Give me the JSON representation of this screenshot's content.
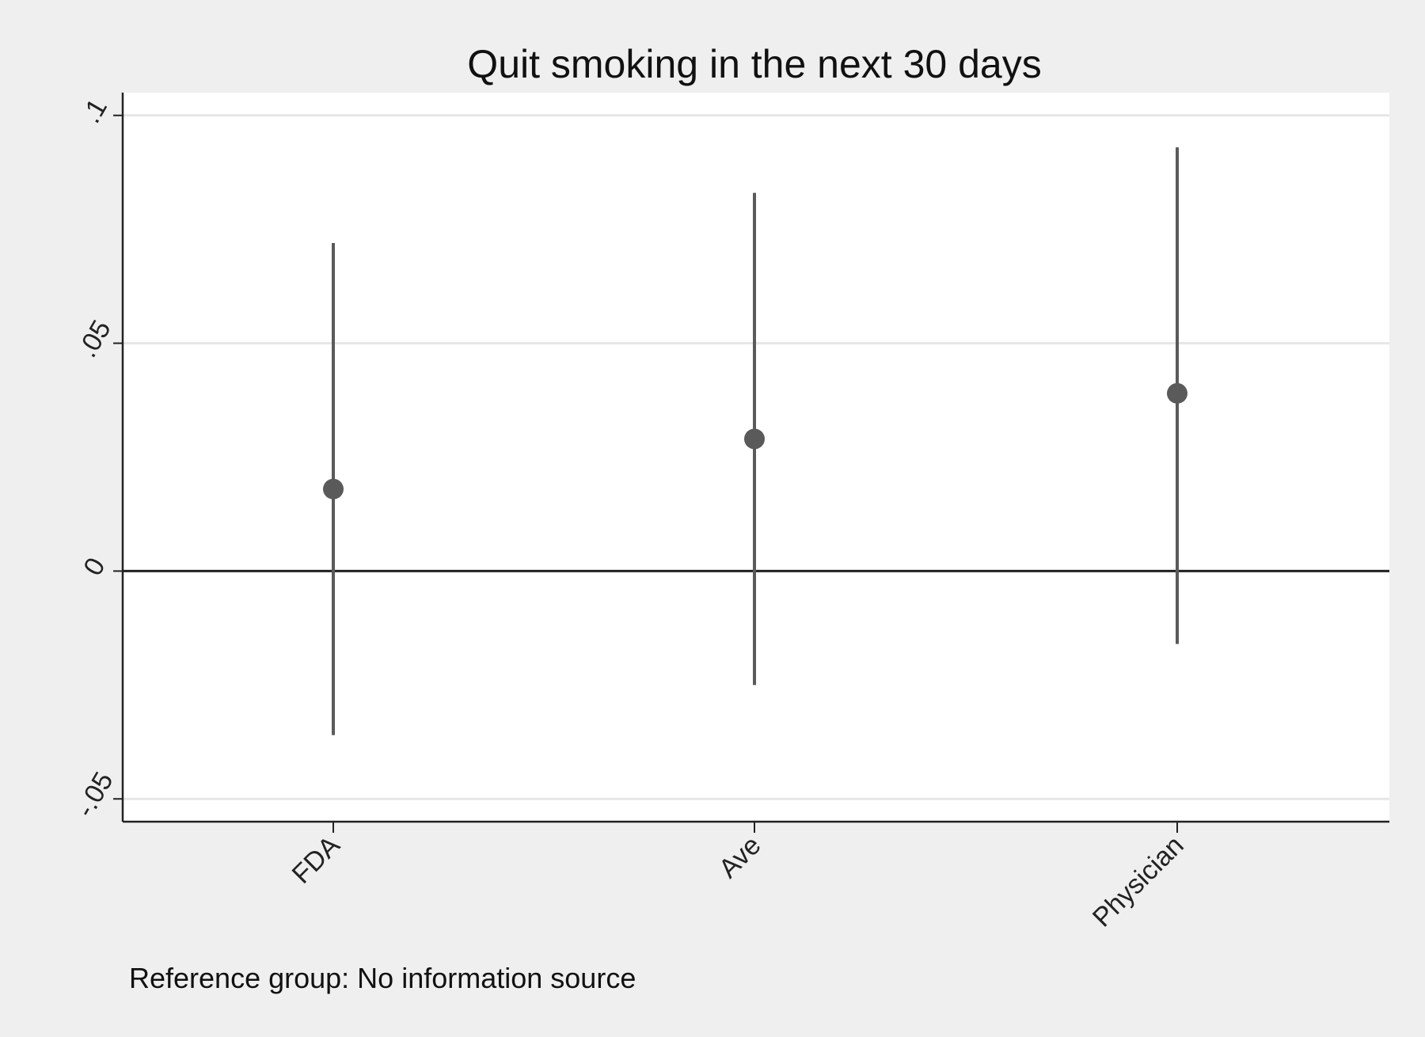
{
  "chart_data": {
    "type": "scatter",
    "title": "Quit smoking in the next 30 days",
    "xlabel": "",
    "ylabel": "",
    "categories": [
      "FDA",
      "Ave",
      "Physician"
    ],
    "series": [
      {
        "points": [
          {
            "category": "FDA",
            "estimate": 0.018,
            "ci_low": -0.036,
            "ci_high": 0.072
          },
          {
            "category": "Ave",
            "estimate": 0.029,
            "ci_low": -0.025,
            "ci_high": 0.083
          },
          {
            "category": "Physician",
            "estimate": 0.039,
            "ci_low": -0.016,
            "ci_high": 0.093
          }
        ]
      }
    ],
    "ylim": [
      -0.055,
      0.105
    ],
    "yticks": [
      {
        "value": -0.05,
        "label": "-.05"
      },
      {
        "value": 0,
        "label": "0"
      },
      {
        "value": 0.05,
        "label": ".05"
      },
      {
        "value": 0.1,
        "label": ".1"
      }
    ],
    "grid": true,
    "zero_line": true,
    "note": "Reference group: No information source",
    "colors": {
      "background": "#efefef",
      "plot_background": "#ffffff",
      "marker": "#5a5a5a",
      "gridline": "#e6e6e6",
      "axis": "#222222"
    }
  }
}
